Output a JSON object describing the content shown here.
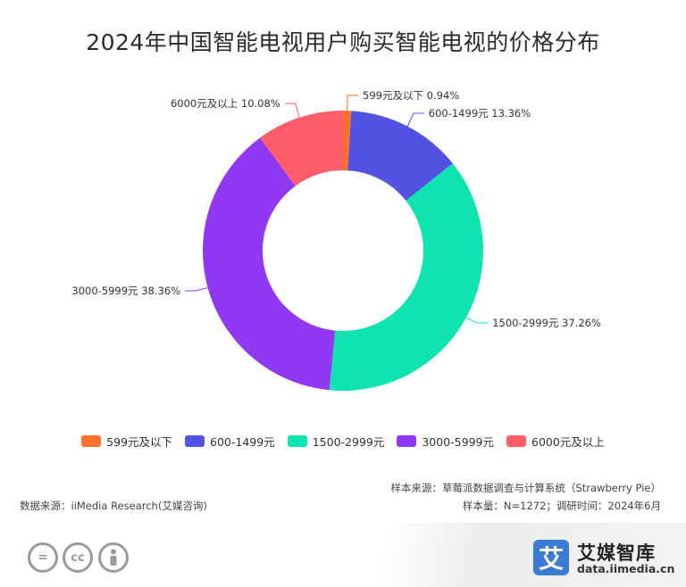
{
  "chart_data": {
    "type": "pie",
    "title": "2024年中国智能电视用户购买智能电视的价格分布",
    "categories": [
      "599元及以下",
      "600-1499元",
      "1500-2999元",
      "3000-5999元",
      "6000元及以上"
    ],
    "values": [
      0.94,
      13.36,
      37.26,
      38.36,
      10.08
    ],
    "labels": [
      "599元及以下 0.94%",
      "600-1499元 13.36%",
      "1500-2999元 37.26%",
      "3000-5999元 38.36%",
      "6000元及以上 10.08%"
    ],
    "colors": [
      "#ff6f2e",
      "#5253e3",
      "#0de4b0",
      "#9138f5",
      "#ff5c6a"
    ],
    "style": "donut",
    "legend_position": "bottom"
  },
  "notes": {
    "sample_source": "样本来源：草莓派数据调查与计算系统（Strawberry Pie）",
    "data_source": "数据来源：iiMedia Research(艾媒咨询)",
    "sample_size": "样本量：N=1272；调研时间：2024年6月"
  },
  "brand": {
    "icon_char": "艾",
    "name": "艾媒智库",
    "url": "data.iimedia.cn"
  },
  "license_icons": [
    "equal-icon",
    "cc-icon",
    "person-icon"
  ]
}
